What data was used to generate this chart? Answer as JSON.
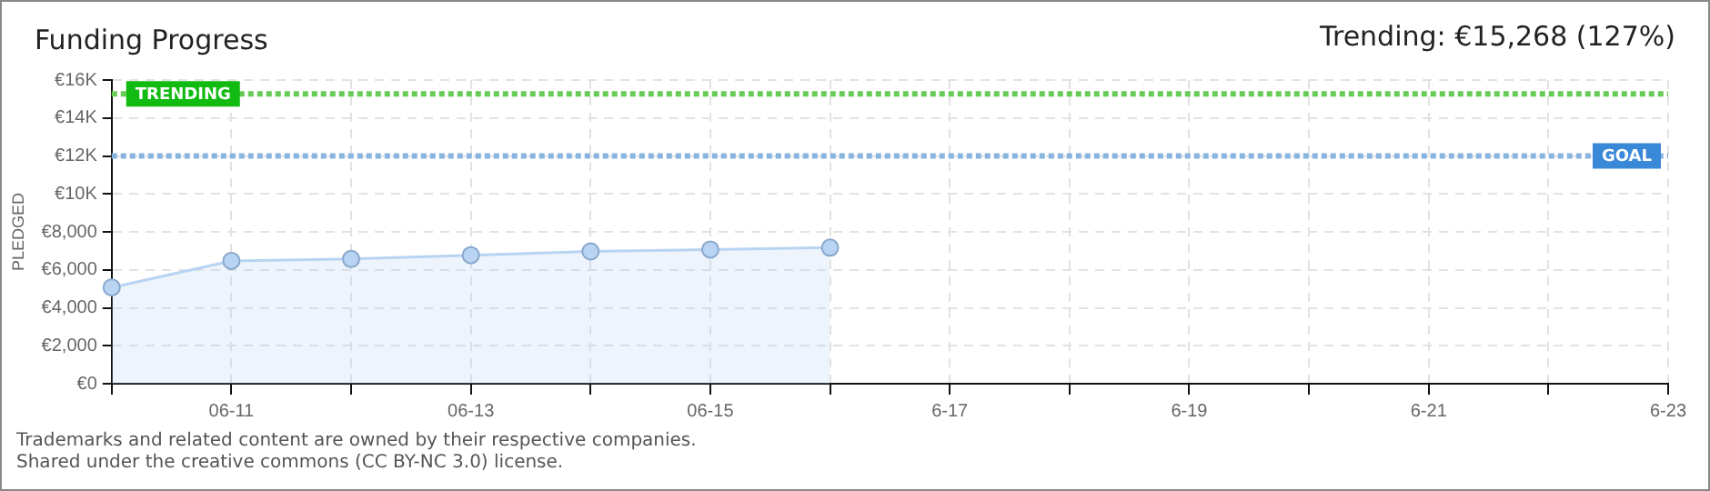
{
  "chart_data": {
    "type": "area",
    "title": "Funding Progress",
    "ylabel": "PLEDGED",
    "annotations": [
      "Trending:  €15,268 (127%)",
      "Trademarks and related content are owned by their respective companies.",
      "Shared under the creative commons (CC BY-NC 3.0) license."
    ],
    "categories": [
      null,
      "06-11",
      null,
      "06-13",
      null,
      "06-15",
      null,
      "6-17",
      null,
      "6-19",
      null,
      "6-21",
      null,
      "6-23"
    ],
    "series": [
      {
        "color": "#b8d4f2",
        "values": [
          5070,
          6470,
          6570,
          6770,
          6970,
          7070,
          7170,
          null,
          null,
          null,
          null,
          null,
          null,
          null
        ]
      }
    ],
    "ylim": [
      0,
      16000
    ],
    "yticks": [
      {
        "value": 0,
        "label": "€0"
      },
      {
        "value": 2000,
        "label": "€2,000"
      },
      {
        "value": 4000,
        "label": "€4,000"
      },
      {
        "value": 6000,
        "label": "€6,000"
      },
      {
        "value": 8000,
        "label": "€8,000"
      },
      {
        "value": 10000,
        "label": "€10K"
      },
      {
        "value": 12000,
        "label": "€12K"
      },
      {
        "value": 14000,
        "label": "€14K"
      },
      {
        "value": 16000,
        "label": "€16K"
      }
    ],
    "ref_lines": [
      {
        "axis": "y",
        "value": 15268,
        "label": "TRENDING",
        "color": "#66cc55",
        "line_style": "dotted"
      },
      {
        "axis": "y",
        "value": 12000,
        "label": "GOAL",
        "color": "#88b4e0",
        "line_style": "dotted"
      }
    ],
    "grid": true,
    "legend": false,
    "marker": "circle",
    "line_style": "solid"
  }
}
